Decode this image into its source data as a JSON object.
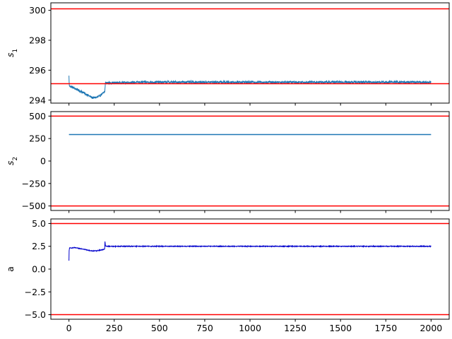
{
  "chart_data": [
    {
      "type": "line",
      "ylabel_base": "s",
      "ylabel_sub": "1",
      "xlim": [
        -100,
        2100
      ],
      "ylim": [
        293.8,
        300.5
      ],
      "yticks": [
        294,
        296,
        298,
        300
      ],
      "ytick_labels": [
        "294",
        "296",
        "298",
        "300"
      ],
      "xticks": [
        0,
        250,
        500,
        750,
        1000,
        1250,
        1500,
        1750,
        2000
      ],
      "show_xtick_labels": false,
      "hlines": [
        {
          "y": 300.1,
          "color": "#ff0000"
        },
        {
          "y": 295.1,
          "color": "#ff0000"
        }
      ],
      "series": [
        {
          "style": "noisy",
          "color": "#1f77b4",
          "noise": 0.08,
          "knots": [
            [
              0,
              295.6
            ],
            [
              2,
              294.95
            ],
            [
              20,
              294.85
            ],
            [
              80,
              294.5
            ],
            [
              130,
              294.15
            ],
            [
              160,
              294.2
            ],
            [
              198,
              294.55
            ],
            [
              201,
              295.15
            ],
            [
              400,
              295.2
            ],
            [
              2000,
              295.2
            ]
          ]
        }
      ]
    },
    {
      "type": "line",
      "ylabel_base": "s",
      "ylabel_sub": "2",
      "xlim": [
        -100,
        2100
      ],
      "ylim": [
        -550,
        550
      ],
      "yticks": [
        -500,
        -250,
        0,
        250,
        500
      ],
      "ytick_labels": [
        "−500",
        "−250",
        "0",
        "250",
        "500"
      ],
      "xticks": [
        0,
        250,
        500,
        750,
        1000,
        1250,
        1500,
        1750,
        2000
      ],
      "show_xtick_labels": false,
      "hlines": [
        {
          "y": 500,
          "color": "#ff0000"
        },
        {
          "y": -500,
          "color": "#ff0000"
        }
      ],
      "series": [
        {
          "style": "smooth",
          "color": "#1f77b4",
          "noise": 0,
          "knots": [
            [
              0,
              295
            ],
            [
              2000,
              295
            ]
          ]
        }
      ]
    },
    {
      "type": "line",
      "ylabel_base": "a",
      "ylabel_sub": "",
      "xlim": [
        -100,
        2100
      ],
      "ylim": [
        -5.5,
        5.5
      ],
      "yticks": [
        -5.0,
        -2.5,
        0.0,
        2.5,
        5.0
      ],
      "ytick_labels": [
        "−5.0",
        "−2.5",
        "0.0",
        "2.5",
        "5.0"
      ],
      "xticks": [
        0,
        250,
        500,
        750,
        1000,
        1250,
        1500,
        1750,
        2000
      ],
      "xtick_labels": [
        "0",
        "250",
        "500",
        "750",
        "1000",
        "1250",
        "1500",
        "1750",
        "2000"
      ],
      "show_xtick_labels": true,
      "hlines": [
        {
          "y": 5.0,
          "color": "#ff0000"
        },
        {
          "y": -5.0,
          "color": "#ff0000"
        }
      ],
      "series": [
        {
          "style": "noisy",
          "color": "#0000cc",
          "noise": 0.04,
          "knots": [
            [
              0,
              0.9
            ],
            [
              1,
              2.0
            ],
            [
              3,
              2.3
            ],
            [
              30,
              2.35
            ],
            [
              80,
              2.2
            ],
            [
              120,
              2.0
            ],
            [
              150,
              2.0
            ],
            [
              180,
              2.1
            ],
            [
              197,
              2.2
            ],
            [
              199,
              3.0
            ],
            [
              202,
              2.5
            ],
            [
              400,
              2.5
            ],
            [
              2000,
              2.5
            ]
          ]
        }
      ]
    }
  ]
}
